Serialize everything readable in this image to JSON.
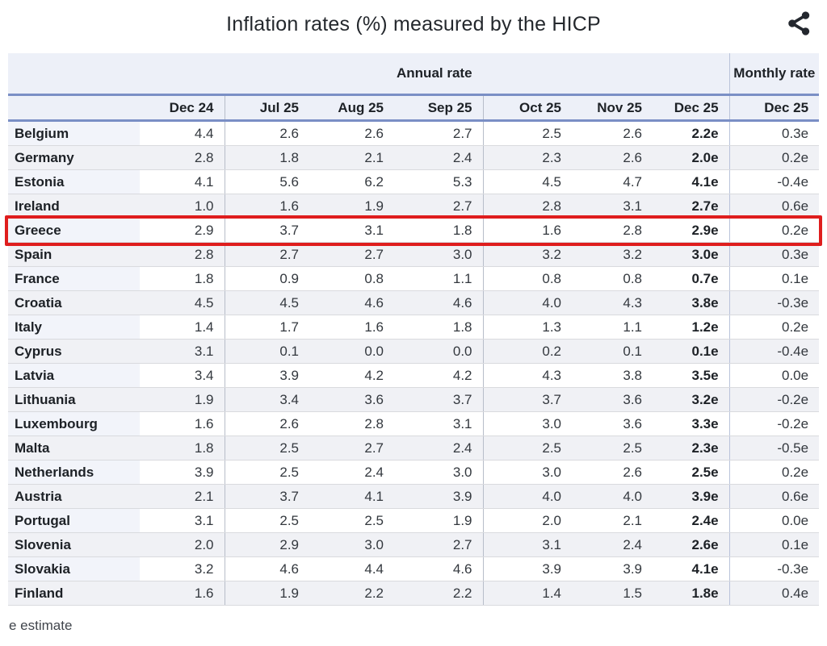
{
  "title": "Inflation rates (%) measured by the HICP",
  "footnote": "e estimate",
  "share": {
    "icon": "share-icon"
  },
  "colors": {
    "highlight_red": "#df1d1d",
    "rule_blue": "#7a8fc5",
    "header_bg": "#edf0f8",
    "alt_row_bg": "#f0f1f5",
    "country_col_bg": "#f2f4fa"
  },
  "chart_data": {
    "type": "table",
    "title": "Inflation rates (%) measured by the HICP",
    "column_groups": [
      {
        "label": "Annual rate",
        "span": 7
      },
      {
        "label": "Monthly rate",
        "span": 1
      }
    ],
    "annual_columns": [
      "Dec 24",
      "Jul 25",
      "Aug 25",
      "Sep 25",
      "Oct 25",
      "Nov 25",
      "Dec 25"
    ],
    "monthly_column": "Dec 25",
    "estimate_suffix": "e",
    "highlighted_row": "Greece",
    "rows": [
      {
        "country": "Belgium",
        "annual": [
          "4.4",
          "2.6",
          "2.6",
          "2.7",
          "2.5",
          "2.6",
          "2.2e"
        ],
        "monthly": "0.3e"
      },
      {
        "country": "Germany",
        "annual": [
          "2.8",
          "1.8",
          "2.1",
          "2.4",
          "2.3",
          "2.6",
          "2.0e"
        ],
        "monthly": "0.2e"
      },
      {
        "country": "Estonia",
        "annual": [
          "4.1",
          "5.6",
          "6.2",
          "5.3",
          "4.5",
          "4.7",
          "4.1e"
        ],
        "monthly": "-0.4e"
      },
      {
        "country": "Ireland",
        "annual": [
          "1.0",
          "1.6",
          "1.9",
          "2.7",
          "2.8",
          "3.1",
          "2.7e"
        ],
        "monthly": "0.6e"
      },
      {
        "country": "Greece",
        "annual": [
          "2.9",
          "3.7",
          "3.1",
          "1.8",
          "1.6",
          "2.8",
          "2.9e"
        ],
        "monthly": "0.2e"
      },
      {
        "country": "Spain",
        "annual": [
          "2.8",
          "2.7",
          "2.7",
          "3.0",
          "3.2",
          "3.2",
          "3.0e"
        ],
        "monthly": "0.3e"
      },
      {
        "country": "France",
        "annual": [
          "1.8",
          "0.9",
          "0.8",
          "1.1",
          "0.8",
          "0.8",
          "0.7e"
        ],
        "monthly": "0.1e"
      },
      {
        "country": "Croatia",
        "annual": [
          "4.5",
          "4.5",
          "4.6",
          "4.6",
          "4.0",
          "4.3",
          "3.8e"
        ],
        "monthly": "-0.3e"
      },
      {
        "country": "Italy",
        "annual": [
          "1.4",
          "1.7",
          "1.6",
          "1.8",
          "1.3",
          "1.1",
          "1.2e"
        ],
        "monthly": "0.2e"
      },
      {
        "country": "Cyprus",
        "annual": [
          "3.1",
          "0.1",
          "0.0",
          "0.0",
          "0.2",
          "0.1",
          "0.1e"
        ],
        "monthly": "-0.4e"
      },
      {
        "country": "Latvia",
        "annual": [
          "3.4",
          "3.9",
          "4.2",
          "4.2",
          "4.3",
          "3.8",
          "3.5e"
        ],
        "monthly": "0.0e"
      },
      {
        "country": "Lithuania",
        "annual": [
          "1.9",
          "3.4",
          "3.6",
          "3.7",
          "3.7",
          "3.6",
          "3.2e"
        ],
        "monthly": "-0.2e"
      },
      {
        "country": "Luxembourg",
        "annual": [
          "1.6",
          "2.6",
          "2.8",
          "3.1",
          "3.0",
          "3.6",
          "3.3e"
        ],
        "monthly": "-0.2e"
      },
      {
        "country": "Malta",
        "annual": [
          "1.8",
          "2.5",
          "2.7",
          "2.4",
          "2.5",
          "2.5",
          "2.3e"
        ],
        "monthly": "-0.5e"
      },
      {
        "country": "Netherlands",
        "annual": [
          "3.9",
          "2.5",
          "2.4",
          "3.0",
          "3.0",
          "2.6",
          "2.5e"
        ],
        "monthly": "0.2e"
      },
      {
        "country": "Austria",
        "annual": [
          "2.1",
          "3.7",
          "4.1",
          "3.9",
          "4.0",
          "4.0",
          "3.9e"
        ],
        "monthly": "0.6e"
      },
      {
        "country": "Portugal",
        "annual": [
          "3.1",
          "2.5",
          "2.5",
          "1.9",
          "2.0",
          "2.1",
          "2.4e"
        ],
        "monthly": "0.0e"
      },
      {
        "country": "Slovenia",
        "annual": [
          "2.0",
          "2.9",
          "3.0",
          "2.7",
          "3.1",
          "2.4",
          "2.6e"
        ],
        "monthly": "0.1e"
      },
      {
        "country": "Slovakia",
        "annual": [
          "3.2",
          "4.6",
          "4.4",
          "4.6",
          "3.9",
          "3.9",
          "4.1e"
        ],
        "monthly": "-0.3e"
      },
      {
        "country": "Finland",
        "annual": [
          "1.6",
          "1.9",
          "2.2",
          "2.2",
          "1.4",
          "1.5",
          "1.8e"
        ],
        "monthly": "0.4e"
      }
    ]
  }
}
